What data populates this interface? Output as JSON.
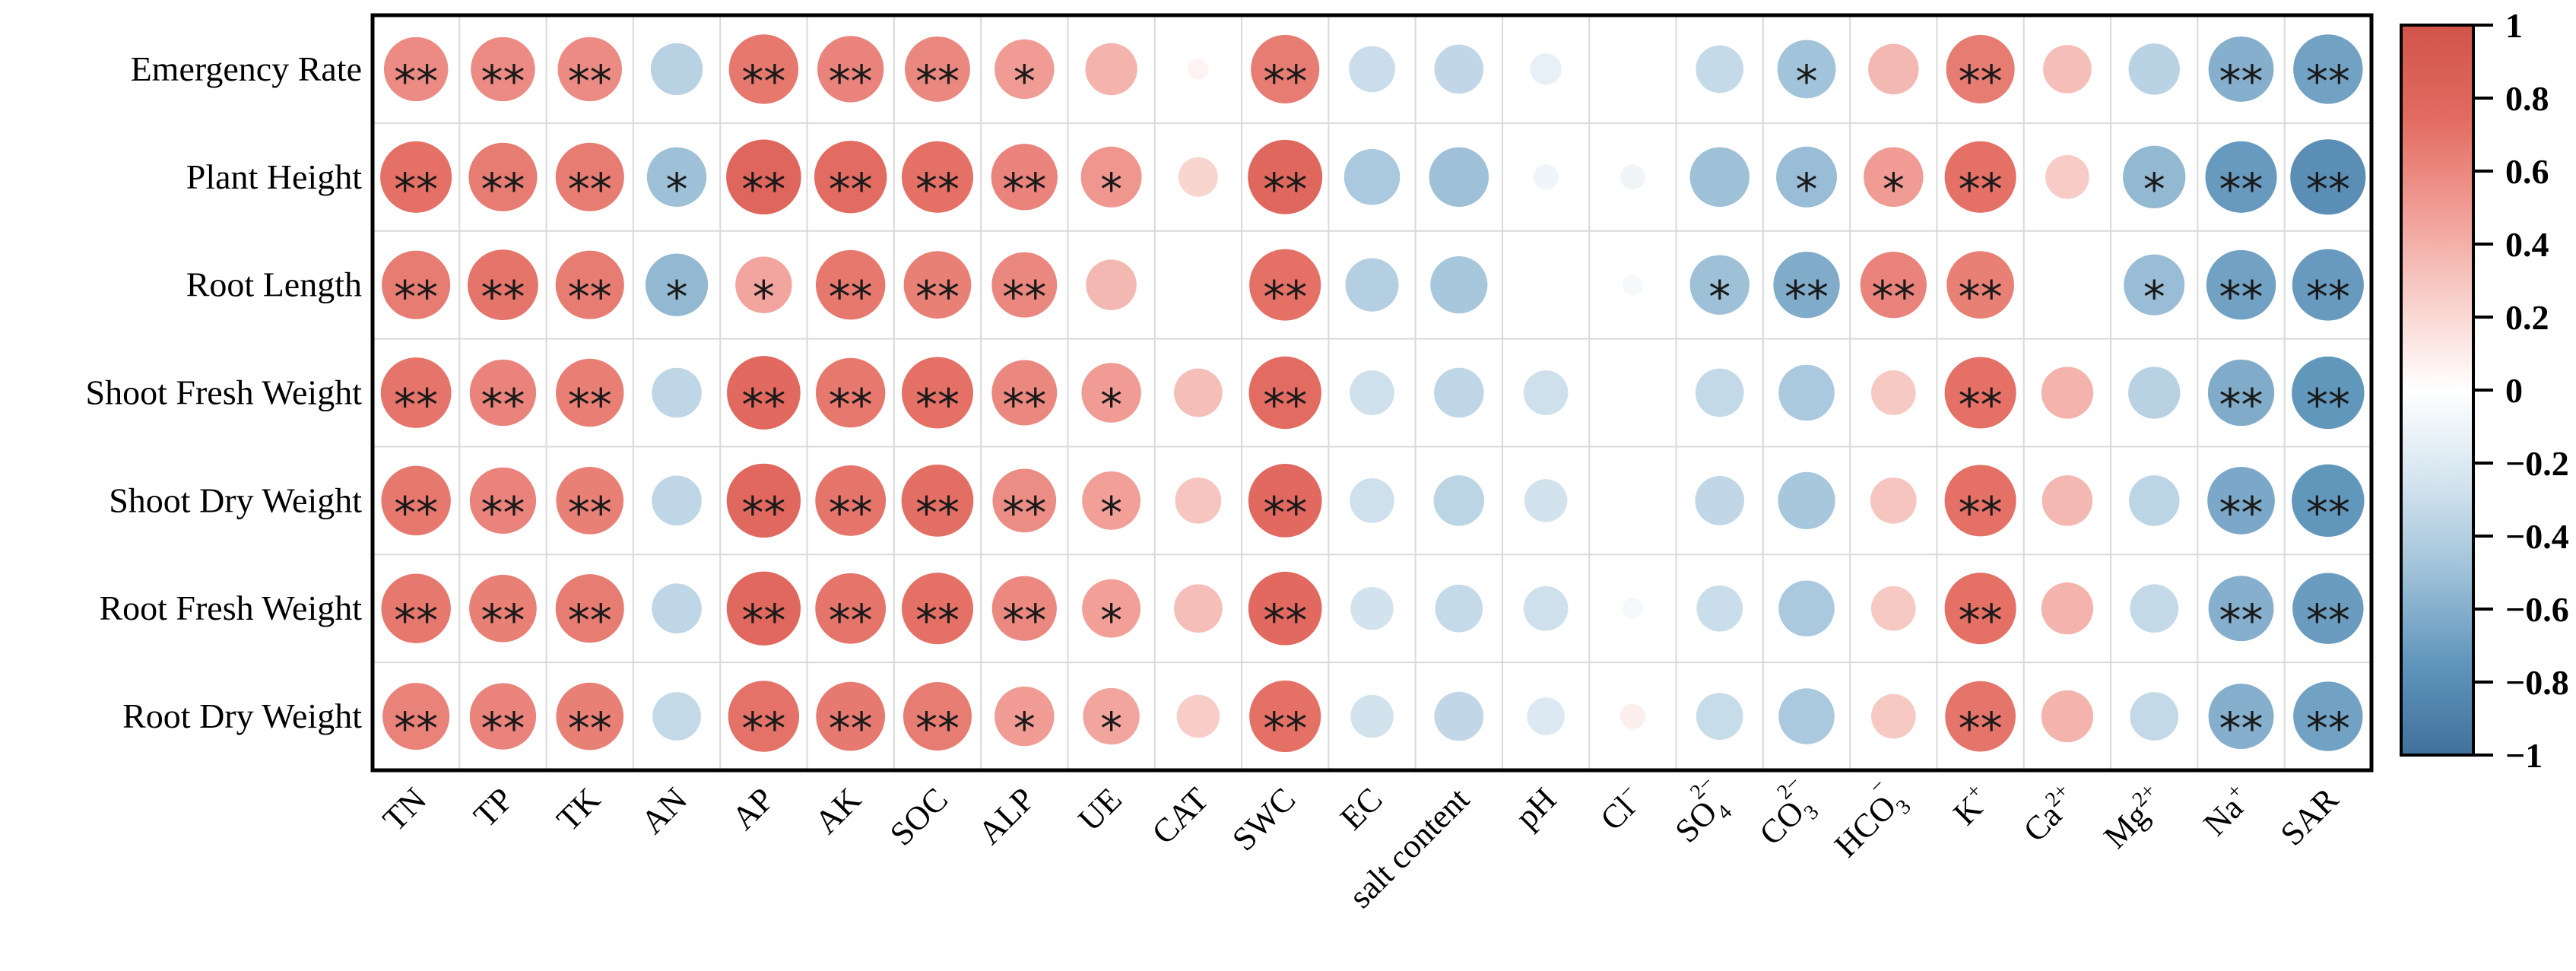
{
  "figure": {
    "description": "Correlation bubble matrix between plant growth traits and soil properties, with significance stars and a red-blue colorbar",
    "background_color": "#ffffff",
    "frame_color": "#000000",
    "grid_color": "#d9d9d9",
    "star_color": "#1a1a1a",
    "label_color": "#000000"
  },
  "chart_data": {
    "type": "heatmap",
    "subtype": "correlation-bubble-matrix",
    "title": "",
    "xlabel": "",
    "ylabel": "",
    "legend_position": "right-colorbar",
    "grid": true,
    "rows": [
      "Emergency Rate",
      "Plant Height",
      "Root Length",
      "Shoot Fresh Weight",
      "Shoot Dry Weight",
      "Root Fresh Weight",
      "Root Dry Weight"
    ],
    "columns": [
      "TN",
      "TP",
      "TK",
      "AN",
      "AP",
      "AK",
      "SOC",
      "ALP",
      "UE",
      "CAT",
      "SWC",
      "EC",
      "salt content",
      "pH",
      "Cl⁻",
      "SO₄²⁻",
      "CO₃²⁻",
      "HCO₃⁻",
      "K⁺",
      "Ca²⁺",
      "Mg²⁺",
      "Na⁺",
      "SAR"
    ],
    "columns_rich": [
      {
        "base": "TN"
      },
      {
        "base": "TP"
      },
      {
        "base": "TK"
      },
      {
        "base": "AN"
      },
      {
        "base": "AP"
      },
      {
        "base": "AK"
      },
      {
        "base": "SOC"
      },
      {
        "base": "ALP"
      },
      {
        "base": "UE"
      },
      {
        "base": "CAT"
      },
      {
        "base": "SWC"
      },
      {
        "base": "EC"
      },
      {
        "base": "salt content"
      },
      {
        "base": "pH"
      },
      {
        "base": "Cl",
        "sup": "−"
      },
      {
        "base": "SO",
        "sub": "4",
        "sup": "2−",
        "stacked": true
      },
      {
        "base": "CO",
        "sub": "3",
        "sup": "2−",
        "stacked": true
      },
      {
        "base": "HCO",
        "sub": "3",
        "sup": "−",
        "stacked": true
      },
      {
        "base": "K",
        "sup": "+"
      },
      {
        "base": "Ca",
        "sup": "2+"
      },
      {
        "base": "Mg",
        "sup": "2+"
      },
      {
        "base": "Na",
        "sup": "+"
      },
      {
        "base": "SAR"
      }
    ],
    "values_note": "Correlation coefficients estimated from bubble size and color; red = positive, blue = negative",
    "values": [
      [
        0.58,
        0.58,
        0.58,
        -0.38,
        0.68,
        0.62,
        0.6,
        0.5,
        0.38,
        0.06,
        0.66,
        -0.3,
        -0.34,
        -0.14,
        0.0,
        -0.32,
        -0.48,
        0.36,
        0.66,
        0.33,
        -0.37,
        -0.6,
        -0.68
      ],
      [
        0.72,
        0.66,
        0.66,
        -0.5,
        0.79,
        0.74,
        0.72,
        0.62,
        0.52,
        0.22,
        0.78,
        -0.44,
        -0.5,
        -0.09,
        -0.09,
        -0.5,
        -0.52,
        0.5,
        0.72,
        0.27,
        -0.55,
        -0.72,
        -0.8
      ],
      [
        0.66,
        0.7,
        0.66,
        -0.55,
        0.45,
        0.68,
        0.64,
        0.6,
        0.36,
        0.0,
        0.72,
        -0.4,
        -0.46,
        0.0,
        -0.06,
        -0.5,
        -0.62,
        0.62,
        0.64,
        0.0,
        -0.52,
        -0.68,
        -0.72
      ],
      [
        0.7,
        0.62,
        0.65,
        -0.35,
        0.76,
        0.68,
        0.72,
        0.6,
        0.5,
        0.33,
        0.74,
        -0.28,
        -0.35,
        -0.28,
        0.0,
        -0.33,
        -0.44,
        0.28,
        0.72,
        0.38,
        -0.38,
        -0.62,
        -0.74
      ],
      [
        0.68,
        0.62,
        0.64,
        -0.35,
        0.77,
        0.7,
        0.73,
        0.57,
        0.48,
        0.3,
        0.76,
        -0.28,
        -0.36,
        -0.26,
        0.0,
        -0.34,
        -0.46,
        0.3,
        0.72,
        0.36,
        -0.36,
        -0.64,
        -0.74
      ],
      [
        0.68,
        0.64,
        0.66,
        -0.35,
        0.77,
        0.7,
        0.72,
        0.59,
        0.48,
        0.33,
        0.76,
        -0.26,
        -0.32,
        -0.28,
        -0.06,
        -0.3,
        -0.44,
        0.28,
        0.72,
        0.38,
        -0.33,
        -0.6,
        -0.71
      ],
      [
        0.63,
        0.62,
        0.64,
        -0.33,
        0.71,
        0.67,
        0.66,
        0.5,
        0.45,
        0.26,
        0.72,
        -0.26,
        -0.34,
        -0.2,
        0.09,
        -0.31,
        -0.44,
        0.28,
        0.7,
        0.38,
        -0.33,
        -0.6,
        -0.68
      ]
    ],
    "significance": [
      [
        "**",
        "**",
        "**",
        "",
        "**",
        "**",
        "**",
        "*",
        "",
        "",
        "**",
        "",
        "",
        "",
        "",
        "",
        "*",
        "",
        "**",
        "",
        "",
        "**",
        "**"
      ],
      [
        "**",
        "**",
        "**",
        "*",
        "**",
        "**",
        "**",
        "**",
        "*",
        "",
        "**",
        "",
        "",
        "",
        "",
        "",
        "*",
        "*",
        "**",
        "",
        "*",
        "**",
        "**"
      ],
      [
        "**",
        "**",
        "**",
        "*",
        "*",
        "**",
        "**",
        "**",
        "",
        "",
        "**",
        "",
        "",
        "",
        "",
        "*",
        "**",
        "**",
        "**",
        "",
        "*",
        "**",
        "**"
      ],
      [
        "**",
        "**",
        "**",
        "",
        "**",
        "**",
        "**",
        "**",
        "*",
        "",
        "**",
        "",
        "",
        "",
        "",
        "",
        "",
        "",
        "**",
        "",
        "",
        "**",
        "**"
      ],
      [
        "**",
        "**",
        "**",
        "",
        "**",
        "**",
        "**",
        "**",
        "*",
        "",
        "**",
        "",
        "",
        "",
        "",
        "",
        "",
        "",
        "**",
        "",
        "",
        "**",
        "**"
      ],
      [
        "**",
        "**",
        "**",
        "",
        "**",
        "**",
        "**",
        "**",
        "*",
        "",
        "**",
        "",
        "",
        "",
        "",
        "",
        "",
        "",
        "**",
        "",
        "",
        "**",
        "**"
      ],
      [
        "**",
        "**",
        "**",
        "",
        "**",
        "**",
        "**",
        "*",
        "*",
        "",
        "**",
        "",
        "",
        "",
        "",
        "",
        "",
        "",
        "**",
        "",
        "",
        "**",
        "**"
      ]
    ],
    "colorbar": {
      "min": -1,
      "max": 1,
      "tick_labels": [
        "1",
        "0.8",
        "0.6",
        "0.4",
        "0.2",
        "0",
        "−0.2",
        "−0.4",
        "−0.6",
        "−0.8",
        "−1"
      ],
      "positive_color_stops": [
        [
          0,
          "#ffffff"
        ],
        [
          0.25,
          "#f8cfca"
        ],
        [
          0.5,
          "#f09b93"
        ],
        [
          0.75,
          "#e26a60"
        ],
        [
          1,
          "#d1544a"
        ]
      ],
      "negative_color_stops": [
        [
          0,
          "#ffffff"
        ],
        [
          0.25,
          "#d4e4ef"
        ],
        [
          0.5,
          "#9ec1d8"
        ],
        [
          0.75,
          "#6095bb"
        ],
        [
          1,
          "#41719b"
        ]
      ]
    }
  }
}
